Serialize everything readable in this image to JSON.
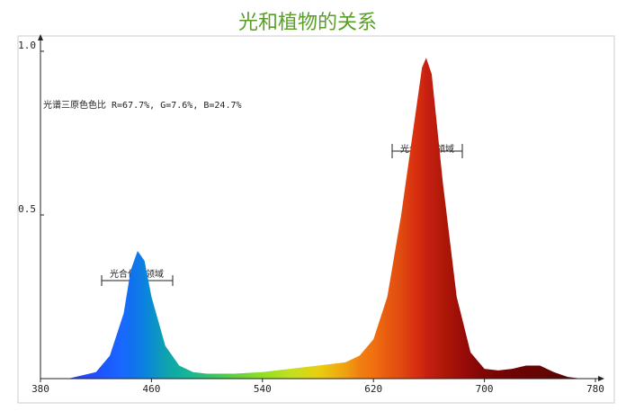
{
  "chart_data": {
    "type": "area",
    "title": "光和植物的关系",
    "annotation": "光谱三原色色比 R=67.7%,  G=7.6%,  B=24.7%",
    "region_label": "光合作用领域",
    "x": [
      380,
      400,
      420,
      430,
      440,
      445,
      450,
      455,
      460,
      470,
      480,
      490,
      500,
      520,
      540,
      560,
      580,
      600,
      610,
      620,
      630,
      640,
      650,
      655,
      658,
      662,
      670,
      680,
      690,
      700,
      710,
      720,
      730,
      740,
      750,
      760,
      770
    ],
    "values": [
      0,
      0,
      0.02,
      0.07,
      0.2,
      0.33,
      0.39,
      0.36,
      0.25,
      0.1,
      0.04,
      0.02,
      0.015,
      0.015,
      0.02,
      0.03,
      0.04,
      0.05,
      0.07,
      0.12,
      0.25,
      0.5,
      0.8,
      0.95,
      0.98,
      0.93,
      0.6,
      0.25,
      0.08,
      0.03,
      0.025,
      0.03,
      0.04,
      0.04,
      0.02,
      0.005,
      0
    ],
    "colors": [
      "#2a2aff",
      "#2a3cff",
      "#2050ff",
      "#1a5cff",
      "#1a6aff",
      "#1070f0",
      "#1078e8",
      "#0a82e0",
      "#0a8ed0",
      "#10a0b0",
      "#10b0a0",
      "#20b890",
      "#30c070",
      "#60d040",
      "#90e020",
      "#c0e020",
      "#e8d010",
      "#f0a010",
      "#f08010",
      "#f07010",
      "#e85a10",
      "#e04a10",
      "#d83010",
      "#d02810",
      "#c82010",
      "#c01e10",
      "#b01808",
      "#a01008",
      "#900808",
      "#800606",
      "#780404",
      "#700404",
      "#6a0404",
      "#680404",
      "#600404",
      "#580404",
      "#500404"
    ],
    "xlim": [
      380,
      780
    ],
    "xticks": [
      380,
      460,
      540,
      620,
      700,
      780
    ],
    "ylim": [
      0,
      1
    ],
    "yticks": [
      0.5,
      {
        "value": 1,
        "label": "1.0"
      }
    ],
    "title_color": "#5a9e2a"
  }
}
